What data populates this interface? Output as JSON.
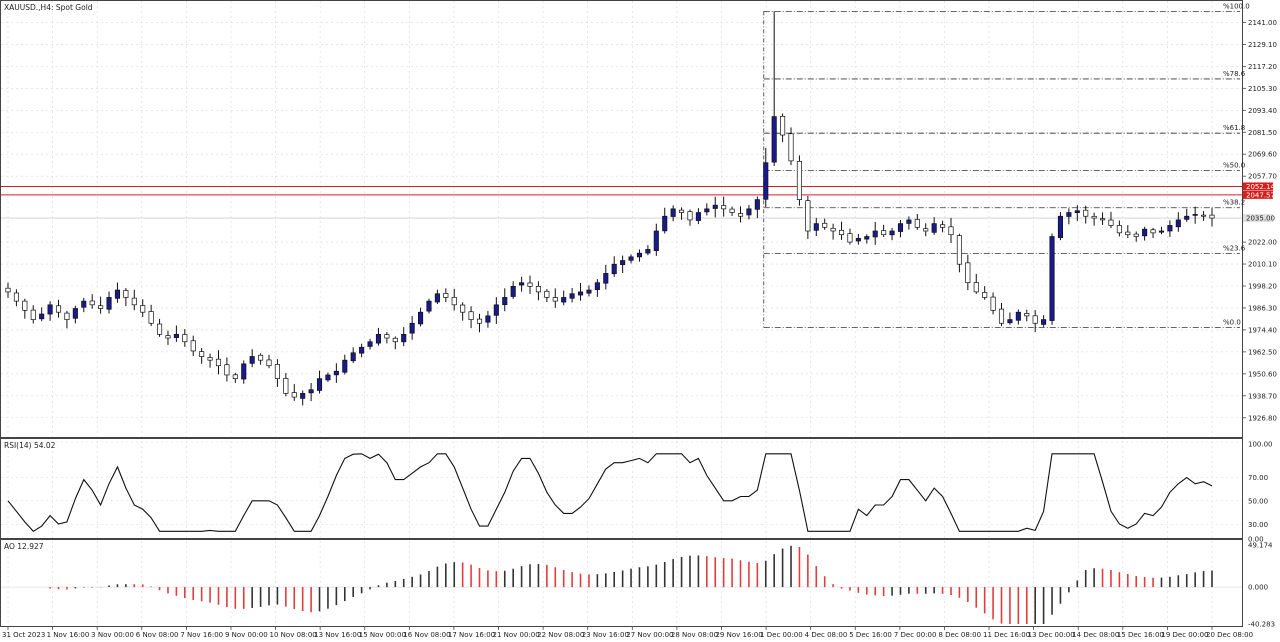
{
  "symbol_title": "XAUUSD.,H4:  Spot Gold",
  "rsi_label": "RSI(14) 54.02",
  "ao_label": "AO 12.927",
  "colors": {
    "bull": "#1a1a8c",
    "bear": "#ffffff",
    "resistance": "#d62020",
    "ao_up": "#333333",
    "ao_down": "#e23c3c",
    "grid": "#d8d8d8"
  },
  "chart_data": [
    {
      "type": "candlestick",
      "panel": "price",
      "ylim": [
        1918,
        2151
      ],
      "y_ticks": [
        "2141.00",
        "2129.10",
        "2117.20",
        "2105.30",
        "2093.40",
        "2081.50",
        "2069.60",
        "2057.70",
        "2022.00",
        "2010.10",
        "1998.20",
        "1986.30",
        "1974.40",
        "1962.50",
        "1950.60",
        "1938.70",
        "1926.80"
      ],
      "x_tick_labels": [
        "31 Oct 2023",
        "1 Nov 16:00",
        "3 Nov 00:00",
        "6 Nov 08:00",
        "7 Nov 16:00",
        "9 Nov 00:00",
        "10 Nov 08:00",
        "13 Nov 16:00",
        "15 Nov 00:00",
        "16 Nov 08:00",
        "17 Nov 16:00",
        "21 Nov 00:00",
        "22 Nov 08:00",
        "23 Nov 16:00",
        "27 Nov 00:00",
        "28 Nov 08:00",
        "29 Nov 16:00",
        "1 Dec 00:00",
        "4 Dec 08:00",
        "5 Dec 16:00",
        "7 Dec 00:00",
        "8 Dec 08:00",
        "11 Dec 16:00",
        "13 Dec 00:00",
        "14 Dec 08:00",
        "15 Dec 16:00",
        "19 Dec 00:00",
        "20 Dec 08:00"
      ],
      "price_path": [
        1995,
        1990,
        1985,
        1980,
        1983,
        1988,
        1984,
        1980,
        1986,
        1990,
        1988,
        1986,
        1992,
        1996,
        1992,
        1988,
        1984,
        1978,
        1972,
        1970,
        1972,
        1968,
        1963,
        1960,
        1958,
        1955,
        1950,
        1948,
        1956,
        1960,
        1958,
        1955,
        1948,
        1940,
        1938,
        1940,
        1942,
        1948,
        1950,
        1952,
        1958,
        1962,
        1965,
        1968,
        1972,
        1970,
        1968,
        1972,
        1978,
        1984,
        1990,
        1994,
        1992,
        1988,
        1984,
        1980,
        1978,
        1982,
        1988,
        1992,
        1998,
        2000,
        1998,
        1995,
        1992,
        1990,
        1992,
        1994,
        1995,
        1996,
        2000,
        2005,
        2010,
        2012,
        2014,
        2016,
        2018,
        2028,
        2036,
        2040,
        2038,
        2034,
        2038,
        2040,
        2042,
        2040,
        2038,
        2036,
        2040,
        2045,
        2065,
        2090,
        2080,
        2066,
        2045,
        2028,
        2032,
        2030,
        2028,
        2026,
        2022,
        2024,
        2025,
        2028,
        2026,
        2028,
        2032,
        2034,
        2030,
        2028,
        2032,
        2030,
        2026,
        2010,
        2000,
        1995,
        1992,
        1985,
        1978,
        1980,
        1984,
        1982,
        1978,
        1980,
        2025,
        2036,
        2038,
        2039,
        2036,
        2035,
        2034,
        2031,
        2027,
        2026,
        2025,
        2029,
        2027,
        2028,
        2031,
        2034,
        2036,
        2037,
        2036,
        2035
      ],
      "resistance_levels": [
        {
          "value": "2052.14"
        },
        {
          "value": "2047.57"
        }
      ],
      "current_price_label": "2035.00",
      "fibonacci": {
        "levels": [
          {
            "label": "%100.0",
            "value": 2147.0
          },
          {
            "label": "%78.6",
            "value": 2110.4
          },
          {
            "label": "%61.8",
            "value": 2081.0
          },
          {
            "label": "%50.0",
            "value": 2060.8
          },
          {
            "label": "%38.2",
            "value": 2040.6
          },
          {
            "label": "%23.6",
            "value": 2015.8
          },
          {
            "label": "%0.0",
            "value": 1975.7
          }
        ]
      }
    },
    {
      "type": "line",
      "panel": "rsi",
      "name": "RSI(14)",
      "ylim": [
        20,
        100
      ],
      "y_ticks": [
        "100.00",
        "70.00",
        "50.00",
        "30.00",
        "0.00"
      ]
    },
    {
      "type": "bar",
      "panel": "ao",
      "name": "AO",
      "ylim": [
        -40.283,
        49.174
      ],
      "y_ticks": [
        "49.174",
        "0.000",
        "-40.283"
      ]
    }
  ]
}
